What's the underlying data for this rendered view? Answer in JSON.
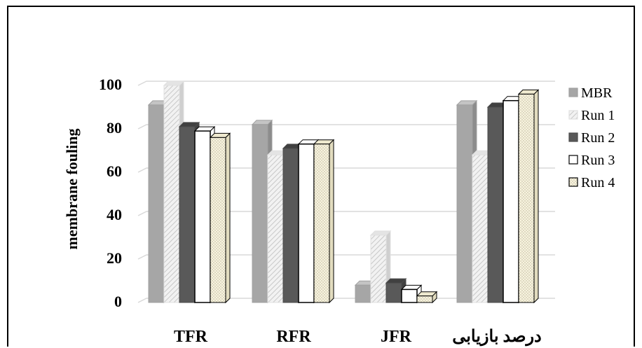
{
  "chart_data": {
    "type": "bar",
    "title": "",
    "xlabel": "",
    "ylabel": "membrane fouling",
    "ylim": [
      0,
      100
    ],
    "yticks": [
      0,
      20,
      40,
      60,
      80,
      100
    ],
    "grid": true,
    "legend_position": "right",
    "categories": [
      "TFR",
      "RFR",
      "JFR",
      "درصد بازیابی"
    ],
    "series": [
      {
        "name": "MBR",
        "values": [
          91,
          82,
          8,
          91
        ],
        "color": "#a6a6a6",
        "pattern": "solid"
      },
      {
        "name": "Run 1",
        "values": [
          100,
          68,
          31,
          68
        ],
        "color": "#d9d9d9",
        "pattern": "diagonal"
      },
      {
        "name": "Run 2",
        "values": [
          81,
          71,
          9,
          90
        ],
        "color": "#595959",
        "pattern": "solid"
      },
      {
        "name": "Run 3",
        "values": [
          79,
          73,
          6,
          93
        ],
        "color": "#ffffff",
        "pattern": "outline"
      },
      {
        "name": "Run 4",
        "values": [
          76,
          73,
          3,
          96
        ],
        "color": "#f5f1dc",
        "pattern": "dotted"
      }
    ]
  }
}
